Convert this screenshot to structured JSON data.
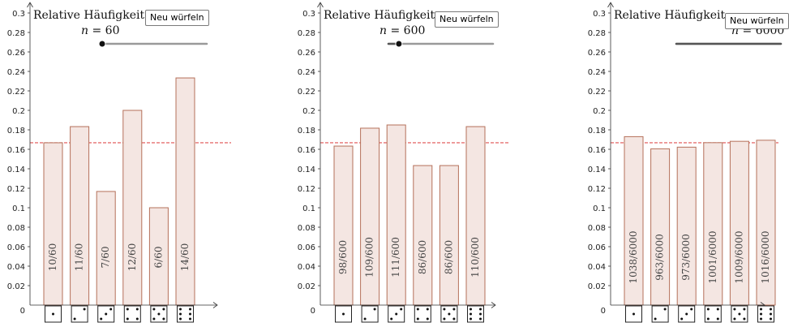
{
  "ylabel": "Relative Häufigkeit",
  "button_label": "Neu würfeln",
  "n_var": "n",
  "equals": " = ",
  "zero_label": "0",
  "expected_value": 0.1667,
  "colors": {
    "bar_fill": "#f4e6e2",
    "bar_stroke": "#b5705a",
    "ref_line": "#e05050",
    "slider_track": "#9a9a9a",
    "slider_active": "#555555"
  },
  "categories": [
    "1",
    "2",
    "3",
    "4",
    "5",
    "6"
  ],
  "pips": [
    [
      4
    ],
    [
      2,
      6
    ],
    [
      2,
      4,
      6
    ],
    [
      0,
      2,
      6,
      8
    ],
    [
      0,
      2,
      4,
      6,
      8
    ],
    [
      0,
      2,
      3,
      5,
      6,
      8
    ]
  ],
  "chart_data": [
    {
      "type": "bar",
      "n": "60",
      "slider_level": 0.0,
      "title": "",
      "xlabel": "",
      "ylabel": "Relative Häufigkeit",
      "ylim": [
        0,
        0.3
      ],
      "yticks": [
        "0.02",
        "0.04",
        "0.06",
        "0.08",
        "0.1",
        "0.12",
        "0.14",
        "0.16",
        "0.18",
        "0.2",
        "0.22",
        "0.24",
        "0.26",
        "0.28",
        "0.3"
      ],
      "categories": [
        "1",
        "2",
        "3",
        "4",
        "5",
        "6"
      ],
      "values": [
        0.1667,
        0.1833,
        0.1167,
        0.2,
        0.1,
        0.2333
      ],
      "labels": [
        "10/60",
        "11/60",
        "7/60",
        "12/60",
        "6/60",
        "14/60"
      ],
      "reference_line": 0.1667
    },
    {
      "type": "bar",
      "n": "600",
      "slider_level": 0.1,
      "title": "",
      "xlabel": "",
      "ylabel": "Relative Häufigkeit",
      "ylim": [
        0,
        0.3
      ],
      "yticks": [
        "0.02",
        "0.04",
        "0.06",
        "0.08",
        "0.1",
        "0.12",
        "0.14",
        "0.16",
        "0.18",
        "0.2",
        "0.22",
        "0.24",
        "0.26",
        "0.28",
        "0.3"
      ],
      "categories": [
        "1",
        "2",
        "3",
        "4",
        "5",
        "6"
      ],
      "values": [
        0.1633,
        0.1817,
        0.185,
        0.1433,
        0.1433,
        0.1833
      ],
      "labels": [
        "98/600",
        "109/600",
        "111/600",
        "86/600",
        "86/600",
        "110/600"
      ],
      "reference_line": 0.1667
    },
    {
      "type": "bar",
      "n": "6000",
      "slider_level": 1.0,
      "title": "",
      "xlabel": "",
      "ylabel": "Relative Häufigkeit",
      "ylim": [
        0,
        0.3
      ],
      "yticks": [
        "0.02",
        "0.04",
        "0.06",
        "0.08",
        "0.1",
        "0.12",
        "0.14",
        "0.16",
        "0.18",
        "0.2",
        "0.22",
        "0.24",
        "0.26",
        "0.28",
        "0.3"
      ],
      "categories": [
        "1",
        "2",
        "3",
        "4",
        "5",
        "6"
      ],
      "values": [
        0.173,
        0.1605,
        0.1622,
        0.1668,
        0.1682,
        0.1693
      ],
      "labels": [
        "1038/6000",
        "963/6000",
        "973/6000",
        "1001/6000",
        "1009/6000",
        "1016/6000"
      ],
      "reference_line": 0.1667
    }
  ]
}
